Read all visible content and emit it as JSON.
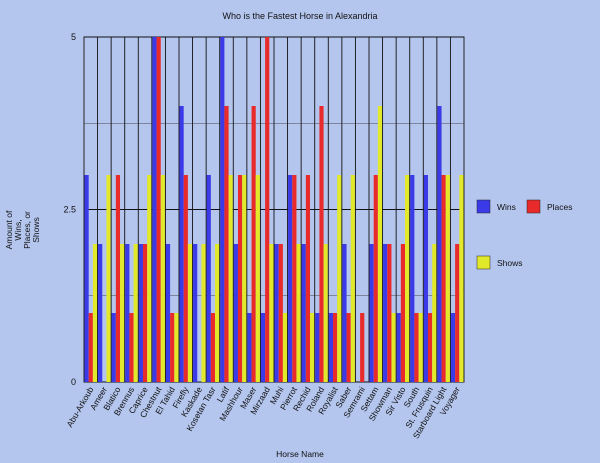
{
  "chart_data": {
    "type": "bar",
    "title": "Who is the Fastest Horse in Alexandria",
    "xlabel": "Horse Name",
    "ylabel_lines": [
      "Amount of",
      "Wins,",
      "Places, or",
      "Shows"
    ],
    "ylim": [
      0,
      5
    ],
    "yticks": [
      "0",
      "2.5",
      "5"
    ],
    "categories": [
      "Abu-Arkoub",
      "Ameer",
      "Blatico",
      "Brennus",
      "Caprice",
      "Chestnut",
      "El Tahid",
      "Firefly",
      "Kaskade",
      "Kosetan Tasr",
      "Latif",
      "Mashhour",
      "Maser",
      "Mirzaad",
      "Muhi",
      "Pierrot",
      "Rechid",
      "Roland",
      "Royalist",
      "Saber",
      "Semrami",
      "Settam",
      "Showman",
      "Sir Visto",
      "South",
      "St. Frusquin",
      "Starboard Light",
      "Voyager"
    ],
    "series": [
      {
        "name": "Wins",
        "color": "#3a3ae8",
        "values": [
          3,
          2,
          1,
          2,
          2,
          5,
          2,
          4,
          2,
          3,
          5,
          2,
          1,
          1,
          2,
          3,
          2,
          1,
          1,
          2,
          0,
          2,
          2,
          1,
          3,
          3,
          4,
          1
        ]
      },
      {
        "name": "Places",
        "color": "#e82a2a",
        "values": [
          1,
          0,
          3,
          1,
          2,
          5,
          1,
          3,
          0,
          1,
          4,
          3,
          4,
          5,
          2,
          3,
          3,
          4,
          1,
          1,
          1,
          3,
          2,
          2,
          1,
          1,
          3,
          2
        ]
      },
      {
        "name": "Shows",
        "color": "#e2e82a",
        "values": [
          2,
          3,
          2,
          2,
          3,
          3,
          1,
          2,
          2,
          2,
          3,
          3,
          3,
          2,
          1,
          2,
          1,
          2,
          3,
          3,
          0,
          4,
          1,
          3,
          1,
          2,
          3,
          3
        ]
      }
    ],
    "legend_position": "right",
    "grid": true
  }
}
